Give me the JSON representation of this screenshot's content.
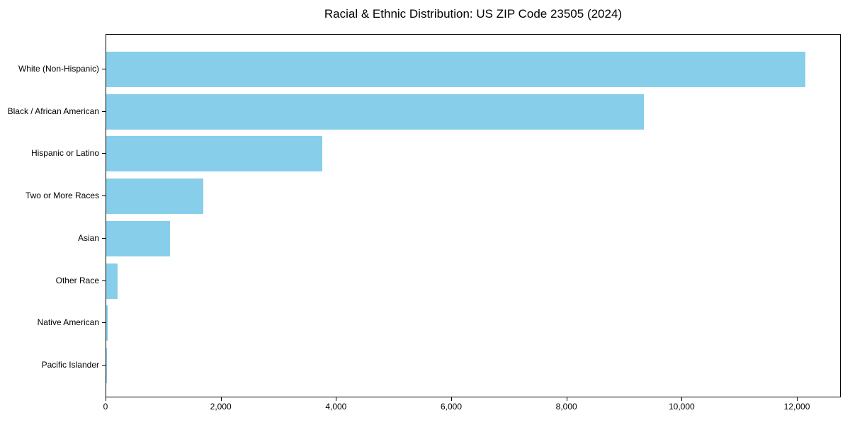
{
  "chart_data": {
    "type": "bar",
    "orientation": "horizontal",
    "title": "Racial & Ethnic Distribution: US ZIP Code 23505 (2024)",
    "categories": [
      "White (Non-Hispanic)",
      "Black / African American",
      "Hispanic or Latino",
      "Two or More Races",
      "Asian",
      "Other Race",
      "Native American",
      "Pacific Islander"
    ],
    "values": [
      12135,
      9335,
      3750,
      1690,
      1110,
      200,
      25,
      10
    ],
    "xlabel": "",
    "ylabel": "",
    "xlim": [
      0,
      12762
    ],
    "xticks": [
      0,
      2000,
      4000,
      6000,
      8000,
      10000,
      12000
    ],
    "xtick_labels": [
      "0",
      "2,000",
      "4,000",
      "6,000",
      "8,000",
      "10,000",
      "12,000"
    ],
    "bar_color": "#87CEEB",
    "grid": false,
    "legend": null
  }
}
